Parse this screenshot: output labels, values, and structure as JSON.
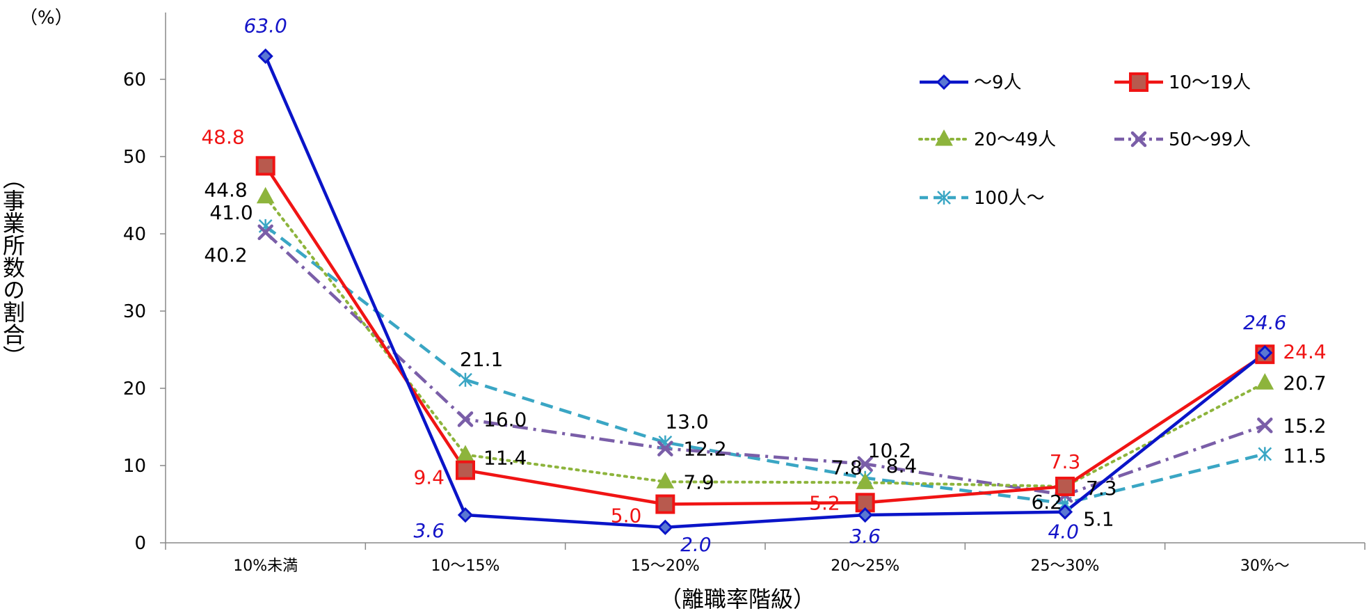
{
  "chart_data": {
    "type": "line",
    "unit_label": "（%）",
    "ylabel": "（事業所数の割合）",
    "xlabel": "（離職率階級）",
    "ylim": [
      0,
      65
    ],
    "yticks": [
      0,
      10,
      20,
      30,
      40,
      50,
      60
    ],
    "grid": false,
    "legend_position": "top-right",
    "categories": [
      "10%未満",
      "10〜15%",
      "15〜20%",
      "20〜25%",
      "25〜30%",
      "30%〜"
    ],
    "series": [
      {
        "name": "〜9人",
        "values": [
          63.0,
          3.6,
          2.0,
          3.6,
          4.0,
          24.6
        ],
        "color": "#0A14C8",
        "dash": "solid",
        "marker": "diamond",
        "label_color": "#1414C8",
        "label_italic": true
      },
      {
        "name": "10〜19人",
        "values": [
          48.8,
          9.4,
          5.0,
          5.2,
          7.3,
          24.4
        ],
        "color": "#F01414",
        "dash": "solid",
        "marker": "square",
        "label_color": "#F01414",
        "label_italic": false
      },
      {
        "name": "20〜49人",
        "values": [
          44.8,
          11.4,
          7.9,
          7.8,
          7.3,
          20.7
        ],
        "color": "#8DB43C",
        "dash": "dotted",
        "marker": "triangle",
        "label_color": "#000000",
        "label_italic": false
      },
      {
        "name": "50〜99人",
        "values": [
          40.2,
          16.0,
          12.2,
          10.2,
          6.2,
          15.2
        ],
        "color": "#7A5EA8",
        "dash": "dashdot",
        "marker": "x",
        "label_color": "#000000",
        "label_italic": false
      },
      {
        "name": "100人〜",
        "values": [
          41.0,
          21.1,
          13.0,
          8.4,
          5.1,
          11.5
        ],
        "color": "#3AA6C4",
        "dash": "dashed",
        "marker": "asterisk",
        "label_color": "#000000",
        "label_italic": false
      }
    ]
  }
}
